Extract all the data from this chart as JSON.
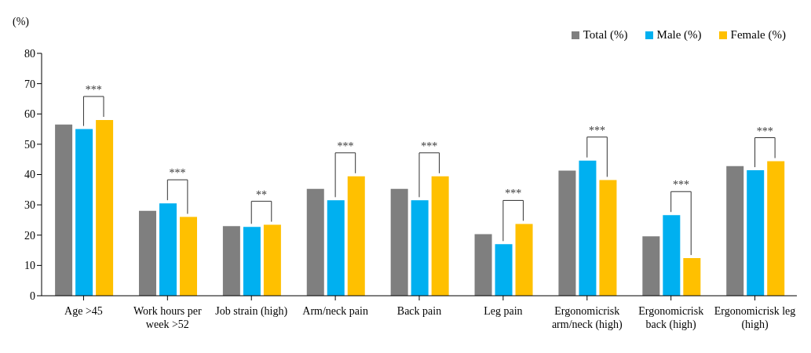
{
  "chart_data": {
    "type": "bar",
    "ylabel": "(%)",
    "categories": [
      "Age >45",
      "Work hours per week >52",
      "Job strain (high)",
      "Arm/neck pain",
      "Back pain",
      "Leg pain",
      "Ergonomicrisk arm/neck (high)",
      "Ergonomicrisk back (high)",
      "Ergonomicrisk leg (high)"
    ],
    "series": [
      {
        "name": "Total (%)",
        "color": "#7f7f7f",
        "values": [
          56.5,
          28,
          23,
          35.3,
          35.3,
          20.3,
          41.3,
          19.6,
          42.8
        ]
      },
      {
        "name": "Male (%)",
        "color": "#00b0f0",
        "values": [
          55,
          30.5,
          22.7,
          31.5,
          31.5,
          17,
          44.6,
          26.6,
          41.4
        ]
      },
      {
        "name": "Female (%)",
        "color": "#ffc000",
        "values": [
          58,
          26,
          23.4,
          39.4,
          39.4,
          23.7,
          38.2,
          12.4,
          44.4
        ]
      }
    ],
    "ylim": [
      0,
      80
    ],
    "yticks": [
      0,
      10,
      20,
      30,
      40,
      50,
      60,
      70,
      80
    ],
    "grid": false,
    "legend": "top right",
    "annotations": [
      "***",
      "***",
      "**",
      "***",
      "***",
      "***",
      "***",
      "***",
      "***"
    ]
  }
}
